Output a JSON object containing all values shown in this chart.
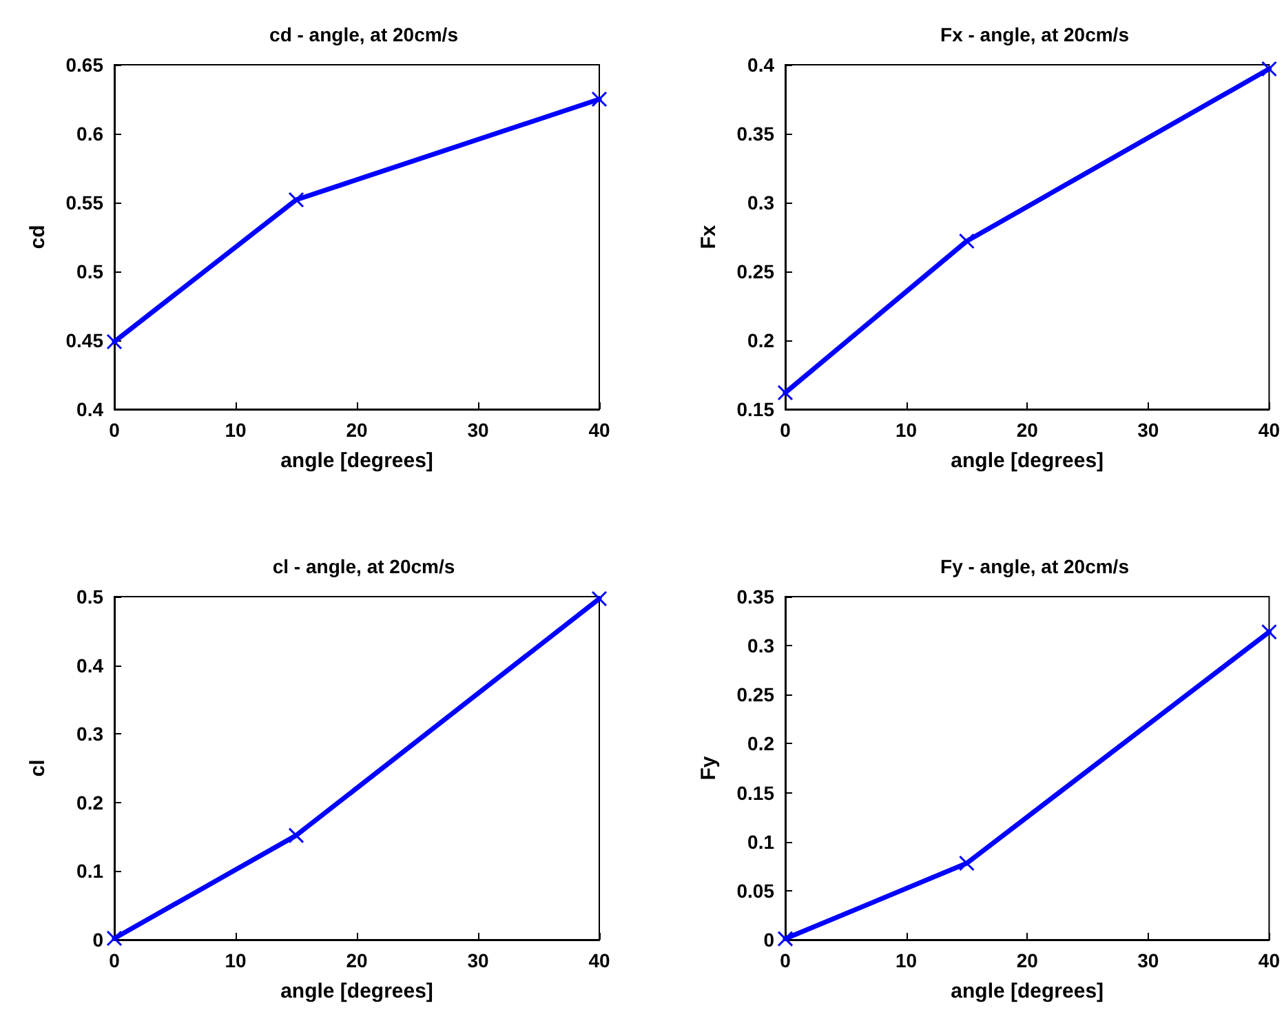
{
  "chart_data": [
    {
      "type": "line",
      "title": "cd - angle, at 20cm/s",
      "xlabel": "angle [degrees]",
      "ylabel": "cd",
      "x": [
        0,
        15,
        40
      ],
      "series": [
        {
          "color": "#0000ff",
          "values": [
            0.449,
            0.552,
            0.625
          ]
        }
      ],
      "xlim": [
        0,
        40
      ],
      "xticks": [
        0,
        10,
        20,
        30,
        40
      ],
      "ylim": [
        0.4,
        0.65
      ],
      "yticks": [
        0.4,
        0.45,
        0.5,
        0.55,
        0.6,
        0.65
      ],
      "marker": "cross",
      "line_style": "solid"
    },
    {
      "type": "line",
      "title": "Fx - angle, at 20cm/s",
      "xlabel": "angle [degrees]",
      "ylabel": "Fx",
      "x": [
        0,
        15,
        40
      ],
      "series": [
        {
          "color": "#0000ff",
          "values": [
            0.162,
            0.272,
            0.397
          ]
        }
      ],
      "xlim": [
        0,
        40
      ],
      "xticks": [
        0,
        10,
        20,
        30,
        40
      ],
      "ylim": [
        0.15,
        0.4
      ],
      "yticks": [
        0.15,
        0.2,
        0.25,
        0.3,
        0.35,
        0.4
      ],
      "marker": "cross",
      "line_style": "solid"
    },
    {
      "type": "line",
      "title": "cl - angle, at 20cm/s",
      "xlabel": "angle [degrees]",
      "ylabel": "cl",
      "x": [
        0,
        15,
        40
      ],
      "series": [
        {
          "color": "#0000ff",
          "values": [
            0.002,
            0.152,
            0.497
          ]
        }
      ],
      "xlim": [
        0,
        40
      ],
      "xticks": [
        0,
        10,
        20,
        30,
        40
      ],
      "ylim": [
        0,
        0.5
      ],
      "yticks": [
        0,
        0.1,
        0.2,
        0.3,
        0.4,
        0.5
      ],
      "marker": "cross",
      "line_style": "solid"
    },
    {
      "type": "line",
      "title": "Fy - angle, at 20cm/s",
      "xlabel": "angle [degrees]",
      "ylabel": "Fy",
      "x": [
        0,
        15,
        40
      ],
      "series": [
        {
          "color": "#0000ff",
          "values": [
            0.001,
            0.078,
            0.314
          ]
        }
      ],
      "xlim": [
        0,
        40
      ],
      "xticks": [
        0,
        10,
        20,
        30,
        40
      ],
      "ylim": [
        0,
        0.35
      ],
      "yticks": [
        0,
        0.05,
        0.1,
        0.15,
        0.2,
        0.25,
        0.3,
        0.35
      ],
      "marker": "cross",
      "line_style": "solid"
    }
  ]
}
